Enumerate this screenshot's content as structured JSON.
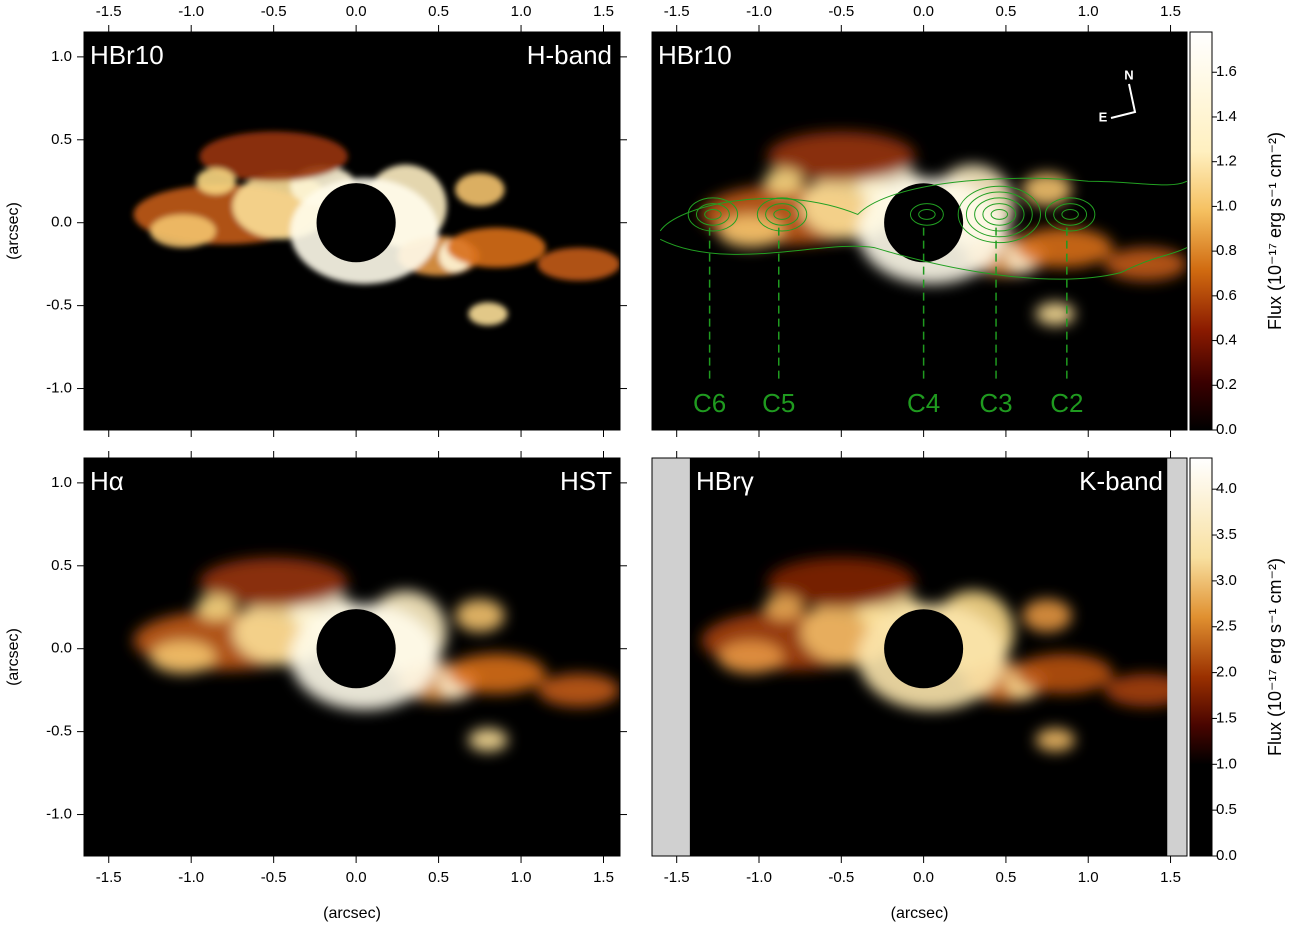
{
  "chart_data": [
    {
      "type": "image",
      "label_left": "HBr10",
      "label_right": "H-band",
      "ylabel": "(arcsec)",
      "xlim": [
        -1.65,
        1.6
      ],
      "ylim": [
        -1.25,
        1.15
      ],
      "xticks": [
        -1.5,
        {
          "value": -1,
          "label": "-1.0"
        },
        -0.5,
        {
          "value": 0,
          "label": "0.0"
        },
        0.5,
        {
          "value": 1,
          "label": "1.0"
        },
        1.5
      ],
      "yticks": [
        {
          "value": 1,
          "label": "1.0"
        },
        0.5,
        {
          "value": 0,
          "label": "0.0"
        },
        -0.5,
        {
          "value": -1,
          "label": "-1.0"
        }
      ]
    },
    {
      "type": "image",
      "label_left": "HBr10",
      "component_labels": [
        "C6",
        "C5",
        "C4",
        "C3",
        "C2"
      ],
      "compass": [
        "N",
        "E"
      ],
      "xlim": [
        -1.65,
        1.6
      ],
      "ylim": [
        -1.25,
        1.15
      ],
      "xticks": [
        -1.5,
        {
          "value": -1,
          "label": "-1.0"
        },
        -0.5,
        {
          "value": 0,
          "label": "0.0"
        },
        0.5,
        {
          "value": 1,
          "label": "1.0"
        },
        1.5
      ],
      "colorbar": {
        "label": "Flux (10⁻¹⁷ erg s⁻¹ cm⁻²)",
        "lim": [
          0,
          1.78
        ],
        "ticks": [
          {
            "value": 0,
            "label": "0.0"
          },
          0.2,
          0.4,
          0.6,
          0.8,
          {
            "value": 1,
            "label": "1.0"
          },
          1.2,
          1.4,
          1.6
        ]
      }
    },
    {
      "type": "image",
      "label_left": "Hα",
      "label_right": "HST",
      "ylabel": "(arcsec)",
      "xlabel": "(arcsec)",
      "xlim": [
        -1.65,
        1.6
      ],
      "ylim": [
        -1.25,
        1.15
      ],
      "xticks": [
        -1.5,
        {
          "value": -1,
          "label": "-1.0"
        },
        -0.5,
        {
          "value": 0,
          "label": "0.0"
        },
        0.5,
        {
          "value": 1,
          "label": "1.0"
        },
        1.5
      ],
      "yticks": [
        {
          "value": 1,
          "label": "1.0"
        },
        0.5,
        {
          "value": 0,
          "label": "0.0"
        },
        -0.5,
        {
          "value": -1,
          "label": "-1.0"
        }
      ]
    },
    {
      "type": "image",
      "label_left": "HBrγ",
      "label_right": "K-band",
      "xlabel": "(arcsec)",
      "xlim": [
        -1.65,
        1.6
      ],
      "ylim": [
        -1.25,
        1.15
      ],
      "xticks": [
        -1.5,
        {
          "value": -1,
          "label": "-1.0"
        },
        -0.5,
        {
          "value": 0,
          "label": "0.0"
        },
        0.5,
        {
          "value": 1,
          "label": "1.0"
        },
        1.5
      ],
      "colorbar": {
        "label": "Flux (10⁻¹⁷ erg s⁻¹ cm⁻²)",
        "lim": [
          0,
          4.34
        ],
        "ticks": [
          {
            "value": 0,
            "label": "0.0"
          },
          0.5,
          {
            "value": 1,
            "label": "1.0"
          },
          1.5,
          {
            "value": 2,
            "label": "2.0"
          },
          2.5,
          {
            "value": 3,
            "label": "3.0"
          },
          3.5,
          {
            "value": 4,
            "label": "4.0"
          }
        ]
      }
    }
  ]
}
